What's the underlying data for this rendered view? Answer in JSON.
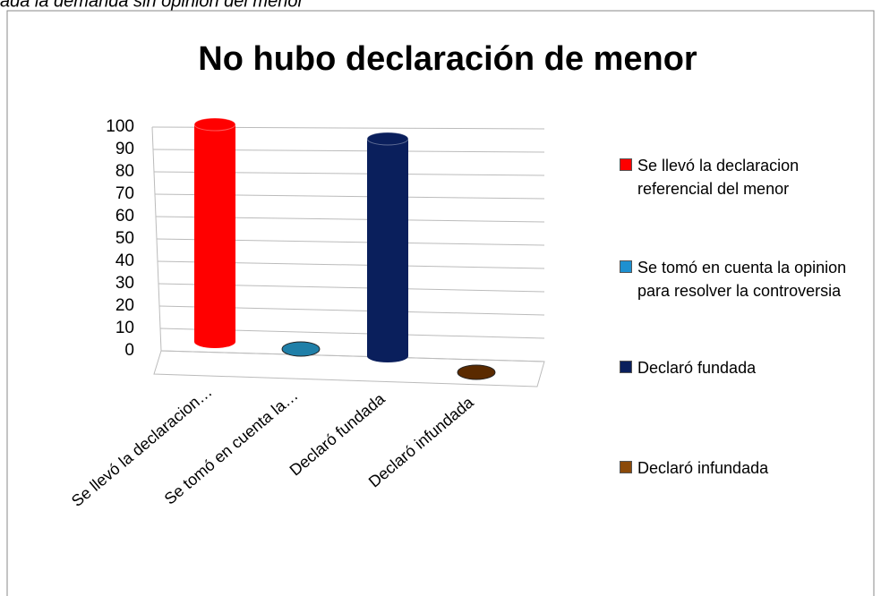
{
  "chart_data": {
    "type": "bar3d",
    "caption": "ada la demanda sin opinion del menor",
    "title": "No hubo declaración de menor",
    "categories": [
      "Se llevó la declaracion…",
      "Se tomó en cuenta la…",
      "Declaró fundada",
      "Declaró infundada"
    ],
    "values": [
      100,
      0,
      100,
      0
    ],
    "colors": [
      "#ff0000",
      "#1f7fa8",
      "#0a1f5c",
      "#5a2a00"
    ],
    "legend": [
      "Se llevó la declaracion referencial del menor",
      "Se tomó en cuenta la opinion para resolver la controversia",
      "Declaró fundada",
      "Declaró infundada"
    ],
    "legend_colors": [
      "#ff0000",
      "#1e90d0",
      "#0a1f5c",
      "#8b4a0a"
    ],
    "ylim": [
      0,
      100
    ],
    "yticks": [
      0,
      10,
      20,
      30,
      40,
      50,
      60,
      70,
      80,
      90,
      100
    ],
    "grid": true,
    "legend_position": "right"
  }
}
